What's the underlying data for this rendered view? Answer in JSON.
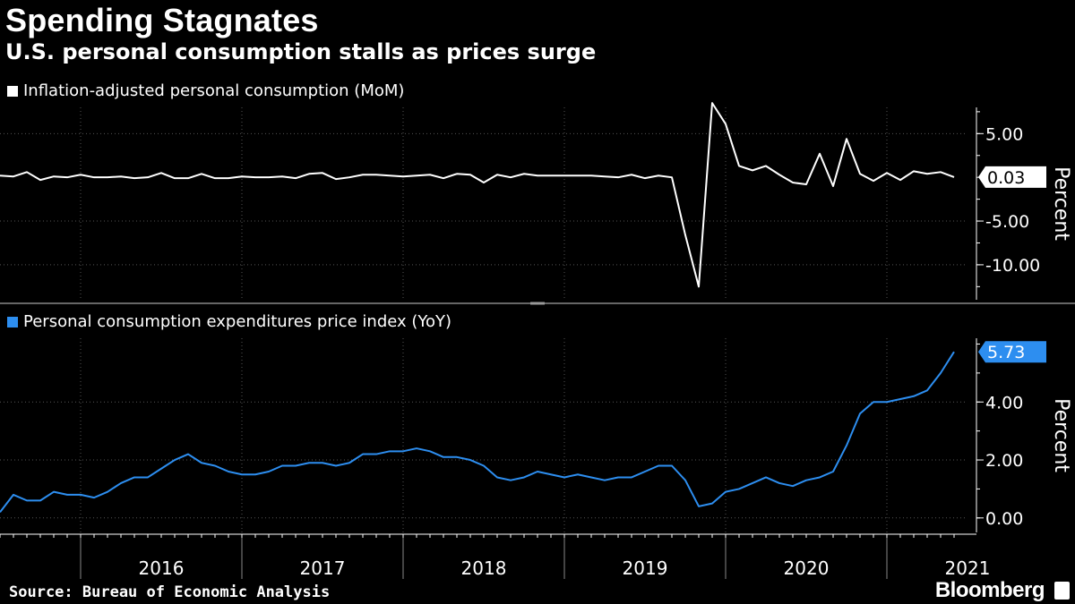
{
  "title": "Spending Stagnates",
  "subtitle": "U.S. personal consumption stalls as prices surge",
  "source": "Source: Bureau of Economic Analysis",
  "logo": "Bloomberg",
  "colors": {
    "background": "#000000",
    "top_series": "#ffffff",
    "bottom_series": "#2d8ef0",
    "grid": "#555555"
  },
  "chart_data": [
    {
      "type": "line",
      "legend_label": "Inflation-adjusted personal consumption (MoM)",
      "ylabel": "Percent",
      "ylim": [
        -14,
        8
      ],
      "yticks": [
        5,
        -5,
        -10
      ],
      "ytick_labels": [
        "5.00",
        "-5.00",
        "-10.00"
      ],
      "last_value_label": "0.03",
      "color": "#ffffff",
      "start": "2015-07",
      "values": [
        0.2,
        0.1,
        0.6,
        -0.3,
        0.1,
        0.0,
        0.3,
        0.0,
        0.0,
        0.1,
        -0.1,
        0.0,
        0.5,
        -0.1,
        -0.1,
        0.4,
        -0.1,
        -0.1,
        0.1,
        0.0,
        0.0,
        0.1,
        -0.1,
        0.4,
        0.5,
        -0.2,
        0.0,
        0.3,
        0.3,
        0.2,
        0.1,
        0.2,
        0.3,
        -0.1,
        0.4,
        0.3,
        -0.6,
        0.3,
        0.0,
        0.4,
        0.2,
        0.2,
        0.2,
        0.2,
        0.2,
        0.1,
        0.0,
        0.3,
        -0.1,
        0.2,
        0.0,
        -6.6,
        -12.5,
        8.5,
        6.1,
        1.3,
        0.8,
        1.3,
        0.3,
        -0.6,
        -0.8,
        2.7,
        -1.0,
        4.4,
        0.4,
        -0.4,
        0.5,
        -0.3,
        0.7,
        0.4,
        0.6,
        0.03
      ]
    },
    {
      "type": "line",
      "legend_label": "Personal consumption expenditures price index (YoY)",
      "ylabel": "Percent",
      "ylim": [
        -0.5,
        6.2
      ],
      "yticks": [
        0,
        2,
        4
      ],
      "ytick_labels": [
        "0.00",
        "2.00",
        "4.00"
      ],
      "last_value_label": "5.73",
      "color": "#2d8ef0",
      "start": "2015-07",
      "values": [
        0.2,
        0.8,
        0.6,
        0.6,
        0.9,
        0.8,
        0.8,
        0.7,
        0.9,
        1.2,
        1.4,
        1.4,
        1.7,
        2.0,
        2.2,
        1.9,
        1.8,
        1.6,
        1.5,
        1.5,
        1.6,
        1.8,
        1.8,
        1.9,
        1.9,
        1.8,
        1.9,
        2.2,
        2.2,
        2.3,
        2.3,
        2.4,
        2.3,
        2.1,
        2.1,
        2.0,
        1.8,
        1.4,
        1.3,
        1.4,
        1.6,
        1.5,
        1.4,
        1.5,
        1.4,
        1.3,
        1.4,
        1.4,
        1.6,
        1.8,
        1.8,
        1.3,
        0.4,
        0.5,
        0.9,
        1.0,
        1.2,
        1.4,
        1.2,
        1.1,
        1.3,
        1.4,
        1.6,
        2.5,
        3.6,
        4.0,
        4.0,
        4.1,
        4.2,
        4.4,
        5.0,
        5.73
      ]
    }
  ],
  "x_axis": {
    "tick_labels": [
      "2016",
      "2017",
      "2018",
      "2019",
      "2020",
      "2021"
    ]
  }
}
